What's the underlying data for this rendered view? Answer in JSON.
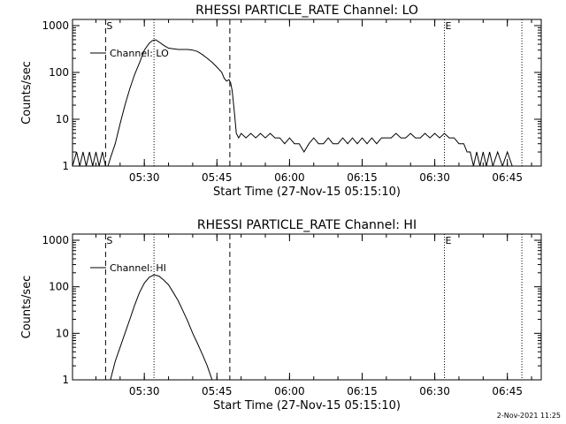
{
  "chart_data": [
    {
      "type": "line",
      "title": "RHESSI PARTICLE_RATE Channel: LO",
      "xlabel": "Start Time (27-Nov-15 05:15:10)",
      "ylabel": "Counts/sec",
      "y_scale": "log",
      "ylim": [
        1,
        1000
      ],
      "xlim": [
        "05:15:10",
        "06:52:00"
      ],
      "x_ticks": [
        "05:30",
        "05:45",
        "06:00",
        "06:15",
        "06:30",
        "06:45"
      ],
      "y_ticks": [
        "1",
        "10",
        "100",
        "1000"
      ],
      "legend": {
        "label": "Channel: LO",
        "placement": "top-left"
      },
      "markers": [
        {
          "label": "S",
          "time": "05:22:00",
          "style": "dashed"
        },
        {
          "label": "",
          "time": "05:32:00",
          "style": "dotted"
        },
        {
          "label": "",
          "time": "05:47:40",
          "style": "dashed"
        },
        {
          "label": "E",
          "time": "06:32:00",
          "style": "dotted"
        },
        {
          "label": "",
          "time": "06:48:00",
          "style": "dotted"
        }
      ],
      "series": [
        {
          "x": [
            "05:15:10",
            "05:16:00",
            "05:16:40",
            "05:17:20",
            "05:18:00",
            "05:18:40",
            "05:19:20",
            "05:20:00",
            "05:20:40",
            "05:21:20",
            "05:22:00",
            "05:22:30",
            "05:23:00",
            "05:24:00",
            "05:25:00",
            "05:26:00",
            "05:27:00",
            "05:28:00",
            "05:29:00",
            "05:30:00",
            "05:31:00",
            "05:31:40",
            "05:32:20",
            "05:33:00",
            "05:34:00",
            "05:35:00",
            "05:36:00",
            "05:37:00",
            "05:38:00",
            "05:39:00",
            "05:40:00",
            "05:41:00",
            "05:42:00",
            "05:43:00",
            "05:44:00",
            "05:45:00",
            "05:46:00",
            "05:46:30",
            "05:47:00",
            "05:47:30",
            "05:47:50",
            "05:48:10",
            "05:48:40",
            "05:49:00",
            "05:49:30",
            "05:50:00",
            "05:51:00",
            "05:52:00",
            "05:53:00",
            "05:54:00",
            "05:55:00",
            "05:56:00",
            "05:57:00",
            "05:58:00",
            "05:59:00",
            "06:00:00",
            "06:01:00",
            "06:02:00",
            "06:03:00",
            "06:04:00",
            "06:05:00",
            "06:06:00",
            "06:07:00",
            "06:08:00",
            "06:09:00",
            "06:10:00",
            "06:11:00",
            "06:12:00",
            "06:13:00",
            "06:14:00",
            "06:15:00",
            "06:16:00",
            "06:17:00",
            "06:18:00",
            "06:19:00",
            "06:20:00",
            "06:21:00",
            "06:22:00",
            "06:23:00",
            "06:24:00",
            "06:25:00",
            "06:26:00",
            "06:27:00",
            "06:28:00",
            "06:29:00",
            "06:30:00",
            "06:31:00",
            "06:32:00",
            "06:33:00",
            "06:34:00",
            "06:35:00",
            "06:36:00",
            "06:36:40",
            "06:37:20",
            "06:38:00",
            "06:38:40",
            "06:39:20",
            "06:40:00",
            "06:40:40",
            "06:41:20",
            "06:42:00",
            "06:43:00",
            "06:44:00",
            "06:45:00",
            "06:46:00",
            "06:47:00",
            "06:48:00",
            "06:49:00",
            "06:50:00",
            "06:51:00",
            "06:52:00"
          ],
          "values": [
            1,
            2,
            1,
            2,
            1,
            2,
            1,
            2,
            1,
            2,
            1,
            1,
            1.5,
            3,
            8,
            20,
            45,
            90,
            160,
            300,
            420,
            480,
            500,
            450,
            380,
            330,
            320,
            310,
            310,
            310,
            300,
            280,
            240,
            200,
            165,
            130,
            100,
            75,
            65,
            70,
            60,
            40,
            12,
            5,
            4,
            5,
            4,
            5,
            4,
            5,
            4,
            5,
            4,
            4,
            3,
            4,
            3,
            3,
            2,
            3,
            4,
            3,
            3,
            4,
            3,
            3,
            4,
            3,
            4,
            3,
            4,
            3,
            4,
            3,
            4,
            4,
            4,
            5,
            4,
            4,
            5,
            4,
            4,
            5,
            4,
            5,
            4,
            5,
            4,
            4,
            3,
            3,
            2,
            2,
            1,
            2,
            1,
            2,
            1,
            2,
            1,
            2,
            1,
            2,
            1,
            1,
            1,
            1,
            1,
            1,
            1
          ]
        }
      ]
    },
    {
      "type": "line",
      "title": "RHESSI PARTICLE_RATE Channel: HI",
      "xlabel": "Start Time (27-Nov-15 05:15:10)",
      "ylabel": "Counts/sec",
      "y_scale": "log",
      "ylim": [
        1,
        1000
      ],
      "xlim": [
        "05:15:10",
        "06:52:00"
      ],
      "x_ticks": [
        "05:30",
        "05:45",
        "06:00",
        "06:15",
        "06:30",
        "06:45"
      ],
      "y_ticks": [
        "1",
        "10",
        "100",
        "1000"
      ],
      "legend": {
        "label": "Channel: HI",
        "placement": "top-left"
      },
      "markers": [
        {
          "label": "S",
          "time": "05:22:00",
          "style": "dashed"
        },
        {
          "label": "",
          "time": "05:32:00",
          "style": "dotted"
        },
        {
          "label": "",
          "time": "05:47:40",
          "style": "dashed"
        },
        {
          "label": "E",
          "time": "06:32:00",
          "style": "dotted"
        },
        {
          "label": "",
          "time": "06:48:00",
          "style": "dotted"
        }
      ],
      "series": [
        {
          "x": [
            "05:23:00",
            "05:24:00",
            "05:25:00",
            "05:26:00",
            "05:27:00",
            "05:28:00",
            "05:29:00",
            "05:30:00",
            "05:31:00",
            "05:32:00",
            "05:33:00",
            "05:34:00",
            "05:35:00",
            "05:36:00",
            "05:37:00",
            "05:38:00",
            "05:39:00",
            "05:40:00",
            "05:41:00",
            "05:42:00",
            "05:43:00",
            "05:44:00"
          ],
          "values": [
            1,
            2.5,
            5,
            10,
            20,
            40,
            75,
            120,
            160,
            180,
            170,
            140,
            110,
            75,
            50,
            30,
            18,
            10,
            6,
            3.5,
            2,
            1
          ]
        }
      ]
    }
  ],
  "footer": {
    "timestamp": "2-Nov-2021 11:25"
  }
}
